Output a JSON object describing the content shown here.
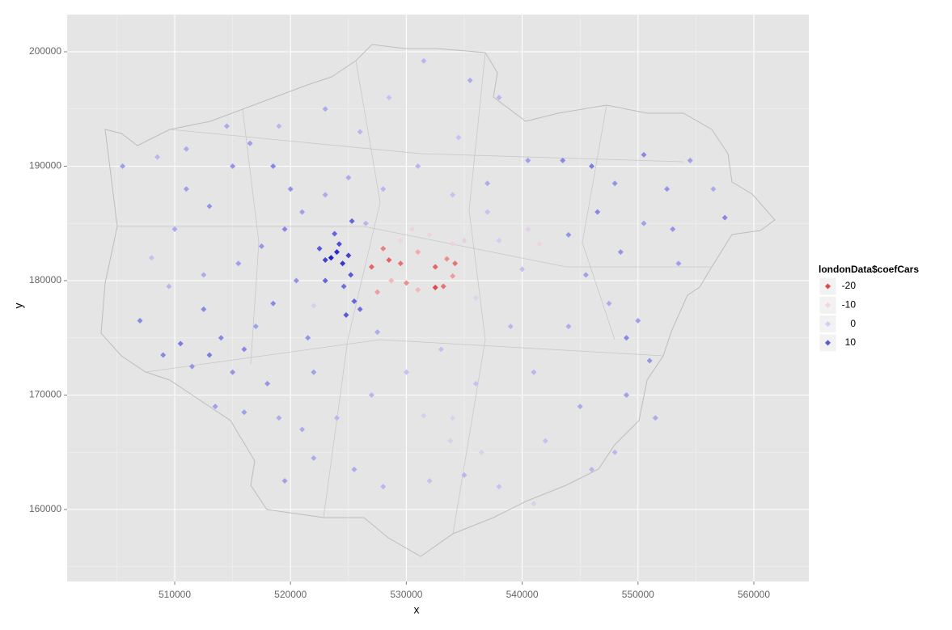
{
  "chart_data": {
    "type": "scatter",
    "xlabel": "x",
    "ylabel": "y",
    "xlim": [
      500712,
      564749
    ],
    "ylim": [
      153710,
      203251
    ],
    "xticks": [
      510000,
      520000,
      530000,
      540000,
      550000,
      560000
    ],
    "yticks": [
      160000,
      170000,
      180000,
      190000,
      200000
    ],
    "grid": true,
    "legend": {
      "title": "londonData$coefCars",
      "position": "right",
      "values": [
        -20,
        -10,
        0,
        10
      ],
      "colors": [
        "#e04848",
        "#f5d5d5",
        "#cfcff5",
        "#5a5ad8"
      ]
    },
    "x": [
      523500,
      524000,
      524500,
      523000,
      524200,
      525000,
      523800,
      525200,
      524600,
      525500,
      524800,
      526000,
      523000,
      522500,
      525300,
      527000,
      528000,
      528500,
      529500,
      528700,
      527500,
      531000,
      532500,
      533500,
      534200,
      532500,
      533200,
      534000,
      530000,
      531000,
      530500,
      532000,
      534000,
      529500,
      535000,
      541500,
      540500,
      536000,
      534000,
      533800,
      536500,
      531500,
      541000,
      522000,
      505500,
      507000,
      509000,
      510500,
      511500,
      512500,
      513000,
      514000,
      515000,
      516000,
      517000,
      518000,
      519000,
      513500,
      510000,
      511000,
      513000,
      515000,
      516500,
      518500,
      520000,
      521000,
      519500,
      517500,
      515500,
      512500,
      509500,
      508000,
      511000,
      508500,
      514500,
      519000,
      523000,
      526000,
      528500,
      531500,
      535500,
      538000,
      534500,
      531000,
      537000,
      540500,
      543500,
      546000,
      548000,
      550500,
      552500,
      554500,
      556500,
      553000,
      557500,
      550500,
      548500,
      546500,
      544000,
      545500,
      547500,
      550000,
      551000,
      553500,
      549000,
      544000,
      541000,
      545000,
      549000,
      551500,
      548000,
      546000,
      542000,
      538000,
      535000,
      532000,
      528000,
      525500,
      522000,
      519500,
      521000,
      524000,
      527000,
      530000,
      533000,
      536000,
      539000,
      540000,
      538000,
      537000,
      534000,
      528000,
      525000,
      523000,
      520500,
      518500,
      521500,
      527500,
      522000,
      516000,
      526500
    ],
    "y": [
      182000,
      182500,
      181500,
      181800,
      183200,
      182200,
      184100,
      180500,
      179500,
      178200,
      177000,
      177500,
      180000,
      182800,
      185200,
      181200,
      182800,
      181800,
      181500,
      180000,
      179000,
      182500,
      181200,
      181900,
      181500,
      179400,
      179500,
      180400,
      179800,
      179200,
      184500,
      184000,
      183200,
      183500,
      183500,
      183200,
      184500,
      178500,
      168000,
      166000,
      165000,
      168200,
      160500,
      177800,
      190000,
      176500,
      173500,
      174500,
      172500,
      177500,
      173500,
      175000,
      172000,
      174000,
      176000,
      171000,
      168000,
      169000,
      184500,
      188000,
      186500,
      190000,
      192000,
      190000,
      188000,
      186000,
      184500,
      183000,
      181500,
      180500,
      179500,
      182000,
      191500,
      190800,
      193500,
      193500,
      195000,
      193000,
      196000,
      199200,
      197500,
      196000,
      192500,
      190000,
      188500,
      190500,
      190500,
      190000,
      188500,
      191000,
      188000,
      190500,
      188000,
      184500,
      185500,
      185000,
      182500,
      186000,
      184000,
      180500,
      178000,
      176500,
      173000,
      181500,
      175000,
      176000,
      172000,
      169000,
      170000,
      168000,
      165000,
      163500,
      166000,
      162000,
      163000,
      162500,
      162000,
      163500,
      164500,
      162500,
      167000,
      168000,
      170000,
      172000,
      174000,
      171000,
      176000,
      181000,
      183500,
      186000,
      187500,
      188000,
      189000,
      187500,
      180000,
      178000,
      175000,
      175500,
      172000,
      168500,
      185000
    ],
    "values": [
      15,
      14,
      13,
      12,
      11,
      12,
      9,
      10,
      8,
      9,
      10,
      8,
      9,
      10,
      9,
      -18,
      -16,
      -18,
      -17,
      -12,
      -14,
      -13,
      -18,
      -15,
      -17,
      -20,
      -17,
      -14,
      -15,
      -12,
      -8,
      -9,
      -7,
      -9,
      -6,
      -9,
      -5,
      -4,
      -3,
      -2,
      -3,
      -2,
      -2,
      -2,
      4,
      6,
      6,
      7,
      5,
      6,
      7,
      6,
      5,
      6,
      4,
      5,
      3,
      4,
      3,
      4,
      5,
      5,
      4,
      6,
      5,
      4,
      6,
      5,
      4,
      3,
      2,
      1,
      3,
      2,
      3,
      2,
      3,
      2,
      1,
      2,
      3,
      2,
      1,
      2,
      3,
      4,
      6,
      7,
      5,
      6,
      5,
      4,
      3,
      5,
      6,
      4,
      5,
      6,
      5,
      4,
      3,
      4,
      5,
      4,
      6,
      3,
      2,
      3,
      4,
      3,
      2,
      2,
      1,
      1,
      2,
      1,
      2,
      3,
      3,
      4,
      3,
      2,
      2,
      1,
      1,
      1,
      2,
      1,
      0,
      1,
      1,
      2,
      3,
      3,
      5,
      6,
      5,
      3,
      4,
      4,
      2
    ]
  }
}
